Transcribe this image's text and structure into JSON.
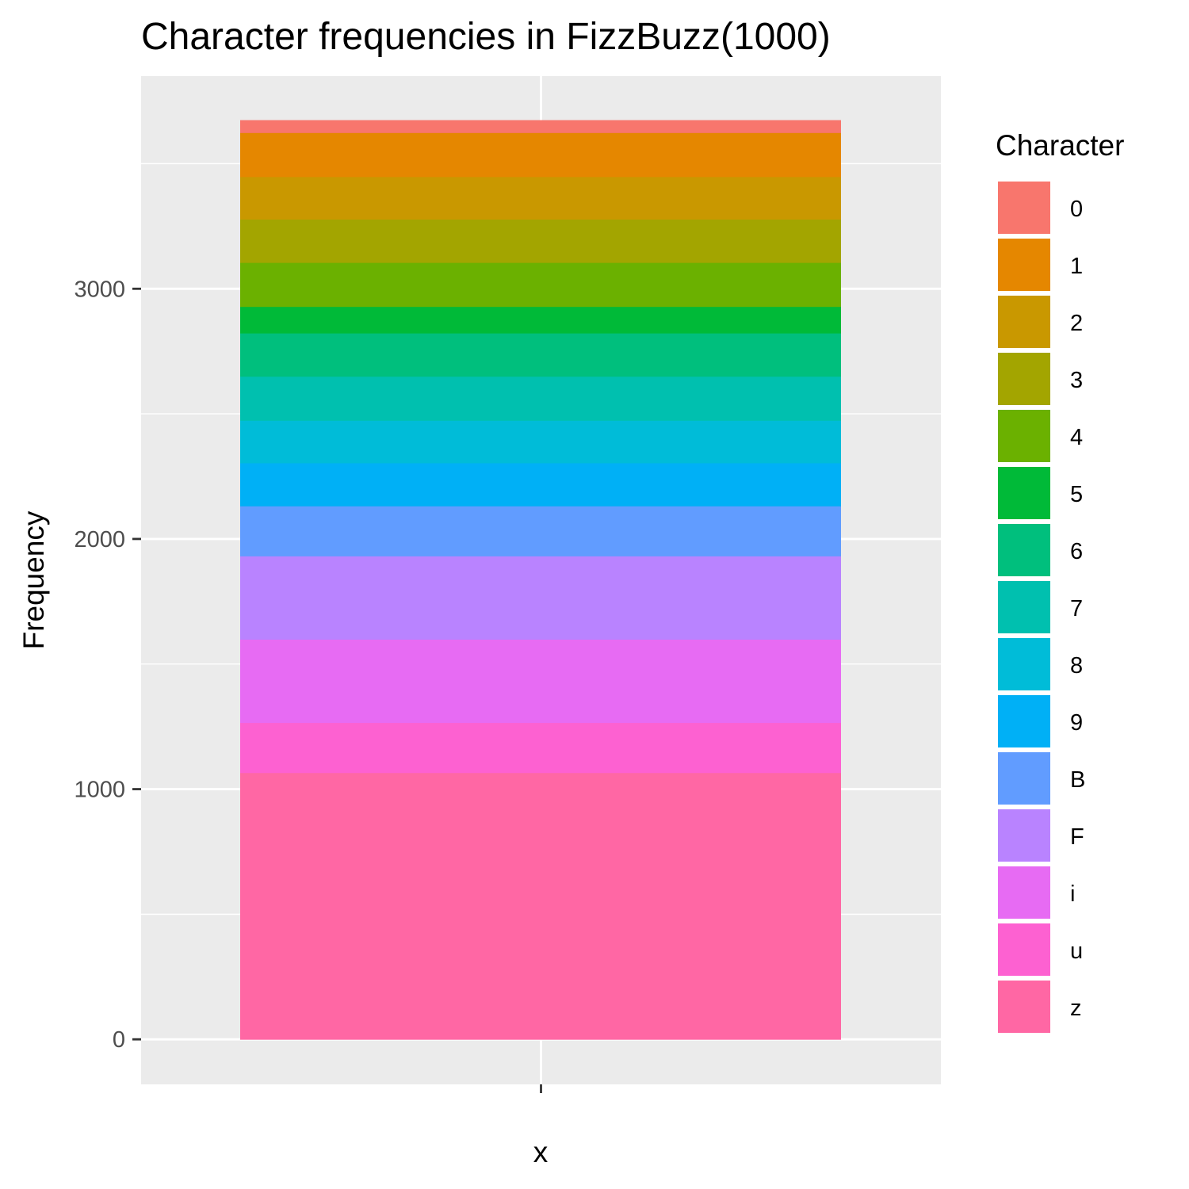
{
  "chart_data": {
    "type": "bar",
    "stacked": true,
    "title": "Character frequencies in FizzBuzz(1000)",
    "xlabel": "x",
    "ylabel": "Frequency",
    "ylim": [
      -180,
      3850
    ],
    "yticks": [
      0,
      1000,
      2000,
      3000
    ],
    "grid": true,
    "legend_position": "right",
    "legend_title": "Character",
    "categories": [
      ""
    ],
    "series": [
      {
        "name": "0",
        "values": [
          50
        ],
        "color": "#F8766D"
      },
      {
        "name": "1",
        "values": [
          176
        ],
        "color": "#E58700"
      },
      {
        "name": "2",
        "values": [
          170
        ],
        "color": "#C99800"
      },
      {
        "name": "3",
        "values": [
          173
        ],
        "color": "#A3A500"
      },
      {
        "name": "4",
        "values": [
          176
        ],
        "color": "#6BB100"
      },
      {
        "name": "5",
        "values": [
          106
        ],
        "color": "#00BA38"
      },
      {
        "name": "6",
        "values": [
          173
        ],
        "color": "#00BF7D"
      },
      {
        "name": "7",
        "values": [
          176
        ],
        "color": "#00C0AF"
      },
      {
        "name": "8",
        "values": [
          170
        ],
        "color": "#00BCD8"
      },
      {
        "name": "9",
        "values": [
          172
        ],
        "color": "#00B0F6"
      },
      {
        "name": "B",
        "values": [
          200
        ],
        "color": "#619CFF"
      },
      {
        "name": "F",
        "values": [
          333
        ],
        "color": "#B983FF"
      },
      {
        "name": "i",
        "values": [
          333
        ],
        "color": "#E76BF3"
      },
      {
        "name": "u",
        "values": [
          200
        ],
        "color": "#FD61D1"
      },
      {
        "name": "z",
        "values": [
          1066
        ],
        "color": "#FF67A4"
      }
    ]
  }
}
